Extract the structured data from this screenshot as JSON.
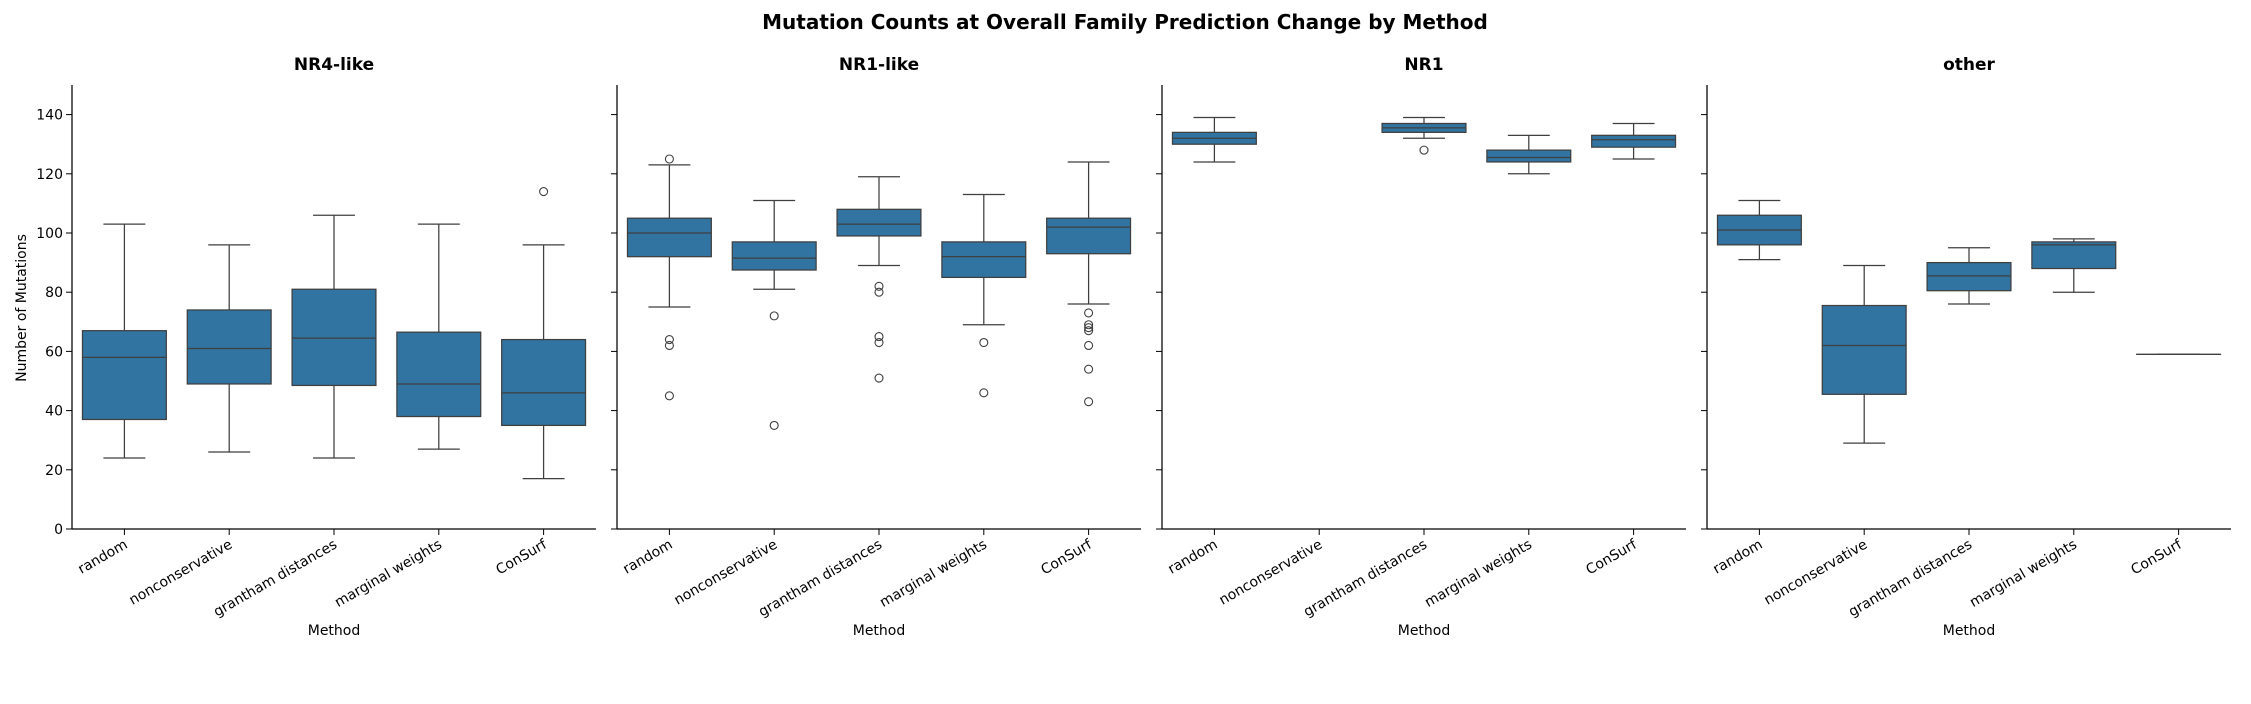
{
  "chart_data": {
    "type": "box",
    "title": "Mutation Counts at Overall Family Prediction Change by Method",
    "ylabel": "Number of Mutations",
    "xlabel": "Method",
    "ylim": [
      0,
      150
    ],
    "yticks": [
      0,
      20,
      40,
      60,
      80,
      100,
      120,
      140
    ],
    "categories": [
      "random",
      "nonconservative",
      "grantham distances",
      "marginal weights",
      "ConSurf"
    ],
    "box_color": "#3274a1",
    "panels": [
      {
        "title": "NR4-like",
        "boxes": [
          {
            "category": "random",
            "whisker_low": 24,
            "q1": 37,
            "median": 58,
            "q3": 67,
            "whisker_high": 103,
            "outliers": []
          },
          {
            "category": "nonconservative",
            "whisker_low": 26,
            "q1": 49,
            "median": 61,
            "q3": 74,
            "whisker_high": 96,
            "outliers": []
          },
          {
            "category": "grantham distances",
            "whisker_low": 24,
            "q1": 48.5,
            "median": 64.5,
            "q3": 81,
            "whisker_high": 106,
            "outliers": []
          },
          {
            "category": "marginal weights",
            "whisker_low": 27,
            "q1": 38,
            "median": 49,
            "q3": 66.5,
            "whisker_high": 103,
            "outliers": []
          },
          {
            "category": "ConSurf",
            "whisker_low": 17,
            "q1": 35,
            "median": 46,
            "q3": 64,
            "whisker_high": 96,
            "outliers": [
              114
            ]
          }
        ]
      },
      {
        "title": "NR1-like",
        "boxes": [
          {
            "category": "random",
            "whisker_low": 75,
            "q1": 92,
            "median": 100,
            "q3": 105,
            "whisker_high": 123,
            "outliers": [
              125,
              64,
              62,
              45
            ]
          },
          {
            "category": "nonconservative",
            "whisker_low": 81,
            "q1": 87.5,
            "median": 91.5,
            "q3": 97,
            "whisker_high": 111,
            "outliers": [
              72,
              35
            ]
          },
          {
            "category": "grantham distances",
            "whisker_low": 89,
            "q1": 99,
            "median": 103,
            "q3": 108,
            "whisker_high": 119,
            "outliers": [
              82,
              80,
              65,
              63,
              51
            ]
          },
          {
            "category": "marginal weights",
            "whisker_low": 69,
            "q1": 85,
            "median": 92,
            "q3": 97,
            "whisker_high": 113,
            "outliers": [
              63,
              46
            ]
          },
          {
            "category": "ConSurf",
            "whisker_low": 76,
            "q1": 93,
            "median": 102,
            "q3": 105,
            "whisker_high": 124,
            "outliers": [
              73,
              69,
              68,
              67,
              62,
              54,
              43
            ]
          }
        ]
      },
      {
        "title": "NR1",
        "boxes": [
          {
            "category": "random",
            "whisker_low": 124,
            "q1": 130,
            "median": 132,
            "q3": 134,
            "whisker_high": 139,
            "outliers": []
          },
          {
            "category": "grantham distances",
            "whisker_low": 132,
            "q1": 134,
            "median": 135.5,
            "q3": 137,
            "whisker_high": 139,
            "outliers": [
              128
            ]
          },
          {
            "category": "marginal weights",
            "whisker_low": 120,
            "q1": 124,
            "median": 125.5,
            "q3": 128,
            "whisker_high": 133,
            "outliers": []
          },
          {
            "category": "ConSurf",
            "whisker_low": 125,
            "q1": 129,
            "median": 131.5,
            "q3": 133,
            "whisker_high": 137,
            "outliers": []
          }
        ]
      },
      {
        "title": "other",
        "boxes": [
          {
            "category": "random",
            "whisker_low": 91,
            "q1": 96,
            "median": 101,
            "q3": 106,
            "whisker_high": 111,
            "outliers": []
          },
          {
            "category": "nonconservative",
            "whisker_low": 29,
            "q1": 45.5,
            "median": 62,
            "q3": 75.5,
            "whisker_high": 89,
            "outliers": []
          },
          {
            "category": "grantham distances",
            "whisker_low": 76,
            "q1": 80.5,
            "median": 85.5,
            "q3": 90,
            "whisker_high": 95,
            "outliers": []
          },
          {
            "category": "marginal weights",
            "whisker_low": 80,
            "q1": 88,
            "median": 96,
            "q3": 97,
            "whisker_high": 98,
            "outliers": []
          },
          {
            "category": "ConSurf",
            "whisker_low": 59,
            "q1": 59,
            "median": 59,
            "q3": 59,
            "whisker_high": 59,
            "outliers": []
          }
        ]
      }
    ]
  }
}
